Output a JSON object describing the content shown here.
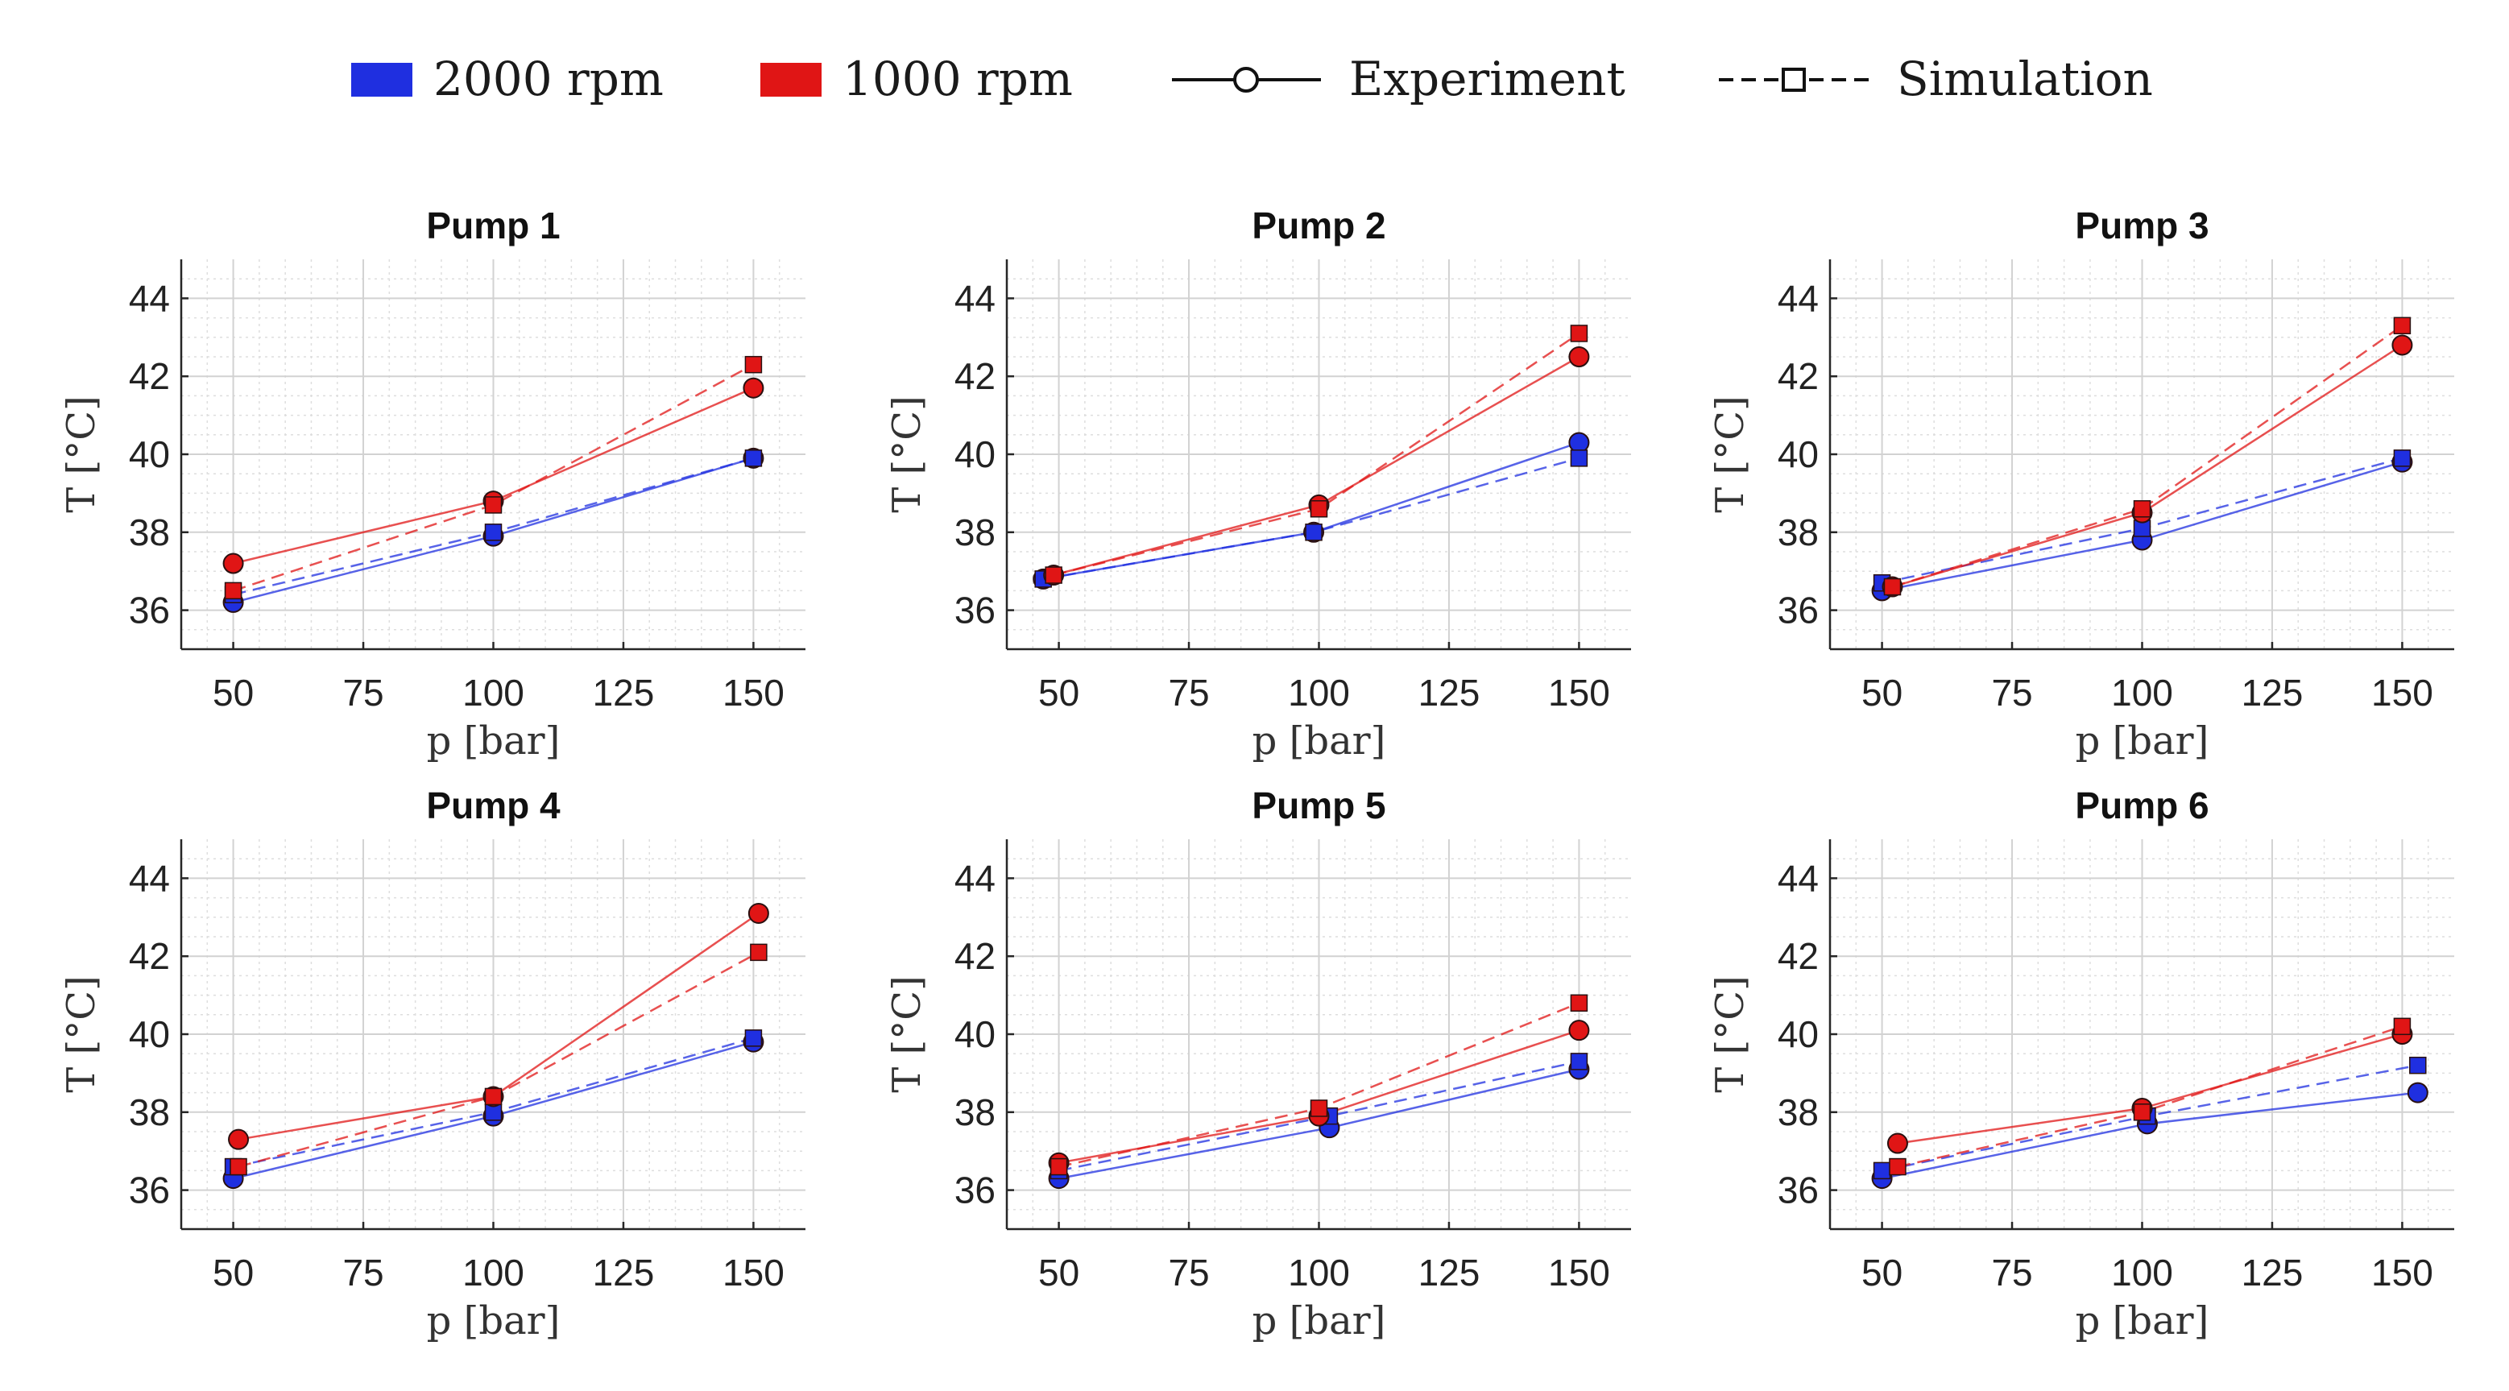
{
  "legend": {
    "blue_label": "2000 rpm",
    "red_label": "1000 rpm",
    "experiment_label": "Experiment",
    "simulation_label": "Simulation"
  },
  "colors": {
    "blue": "#1f2fe0",
    "red": "#e01515"
  },
  "chart_data": [
    {
      "type": "line",
      "title": "Pump 1",
      "xlabel": "p [bar]",
      "ylabel": "T [°C]",
      "xlim": [
        40,
        160
      ],
      "ylim": [
        35,
        45
      ],
      "xticks": [
        50,
        75,
        100,
        125,
        150
      ],
      "yticks": [
        36,
        38,
        40,
        42,
        44
      ],
      "series": [
        {
          "name": "2000 rpm Experiment",
          "color": "blue",
          "marker": "circle",
          "dashed": false,
          "x": [
            50,
            100,
            150
          ],
          "y": [
            36.2,
            37.9,
            39.9
          ]
        },
        {
          "name": "2000 rpm Simulation",
          "color": "blue",
          "marker": "square",
          "dashed": true,
          "x": [
            50,
            100,
            150
          ],
          "y": [
            36.4,
            38.0,
            39.9
          ]
        },
        {
          "name": "1000 rpm Experiment",
          "color": "red",
          "marker": "circle",
          "dashed": false,
          "x": [
            50,
            100,
            150
          ],
          "y": [
            37.2,
            38.8,
            41.7
          ]
        },
        {
          "name": "1000 rpm Simulation",
          "color": "red",
          "marker": "square",
          "dashed": true,
          "x": [
            50,
            100,
            150
          ],
          "y": [
            36.5,
            38.7,
            42.3
          ]
        }
      ]
    },
    {
      "type": "line",
      "title": "Pump 2",
      "xlabel": "p [bar]",
      "ylabel": "T [°C]",
      "xlim": [
        40,
        160
      ],
      "ylim": [
        35,
        45
      ],
      "xticks": [
        50,
        75,
        100,
        125,
        150
      ],
      "yticks": [
        36,
        38,
        40,
        42,
        44
      ],
      "series": [
        {
          "name": "2000 rpm Experiment",
          "color": "blue",
          "marker": "circle",
          "dashed": false,
          "x": [
            47,
            99,
            150
          ],
          "y": [
            36.8,
            38.0,
            40.3
          ]
        },
        {
          "name": "2000 rpm Simulation",
          "color": "blue",
          "marker": "square",
          "dashed": true,
          "x": [
            47,
            99,
            150
          ],
          "y": [
            36.8,
            38.0,
            39.9
          ]
        },
        {
          "name": "1000 rpm Experiment",
          "color": "red",
          "marker": "circle",
          "dashed": false,
          "x": [
            49,
            100,
            150
          ],
          "y": [
            36.9,
            38.7,
            42.5
          ]
        },
        {
          "name": "1000 rpm Simulation",
          "color": "red",
          "marker": "square",
          "dashed": true,
          "x": [
            49,
            100,
            150
          ],
          "y": [
            36.9,
            38.6,
            43.1
          ]
        }
      ]
    },
    {
      "type": "line",
      "title": "Pump 3",
      "xlabel": "p [bar]",
      "ylabel": "T [°C]",
      "xlim": [
        40,
        160
      ],
      "ylim": [
        35,
        45
      ],
      "xticks": [
        50,
        75,
        100,
        125,
        150
      ],
      "yticks": [
        36,
        38,
        40,
        42,
        44
      ],
      "series": [
        {
          "name": "2000 rpm Experiment",
          "color": "blue",
          "marker": "circle",
          "dashed": false,
          "x": [
            50,
            100,
            150
          ],
          "y": [
            36.5,
            37.8,
            39.8
          ]
        },
        {
          "name": "2000 rpm Simulation",
          "color": "blue",
          "marker": "square",
          "dashed": true,
          "x": [
            50,
            100,
            150
          ],
          "y": [
            36.7,
            38.1,
            39.9
          ]
        },
        {
          "name": "1000 rpm Experiment",
          "color": "red",
          "marker": "circle",
          "dashed": false,
          "x": [
            52,
            100,
            150
          ],
          "y": [
            36.6,
            38.5,
            42.8
          ]
        },
        {
          "name": "1000 rpm Simulation",
          "color": "red",
          "marker": "square",
          "dashed": true,
          "x": [
            52,
            100,
            150
          ],
          "y": [
            36.6,
            38.6,
            43.3
          ]
        }
      ]
    },
    {
      "type": "line",
      "title": "Pump 4",
      "xlabel": "p [bar]",
      "ylabel": "T [°C]",
      "xlim": [
        40,
        160
      ],
      "ylim": [
        35,
        45
      ],
      "xticks": [
        50,
        75,
        100,
        125,
        150
      ],
      "yticks": [
        36,
        38,
        40,
        42,
        44
      ],
      "series": [
        {
          "name": "2000 rpm Experiment",
          "color": "blue",
          "marker": "circle",
          "dashed": false,
          "x": [
            50,
            100,
            150
          ],
          "y": [
            36.3,
            37.9,
            39.8
          ]
        },
        {
          "name": "2000 rpm Simulation",
          "color": "blue",
          "marker": "square",
          "dashed": true,
          "x": [
            50,
            100,
            150
          ],
          "y": [
            36.6,
            38.0,
            39.9
          ]
        },
        {
          "name": "1000 rpm Experiment",
          "color": "red",
          "marker": "circle",
          "dashed": false,
          "x": [
            51,
            100,
            151
          ],
          "y": [
            37.3,
            38.4,
            43.1
          ]
        },
        {
          "name": "1000 rpm Simulation",
          "color": "red",
          "marker": "square",
          "dashed": true,
          "x": [
            51,
            100,
            151
          ],
          "y": [
            36.6,
            38.4,
            42.1
          ]
        }
      ]
    },
    {
      "type": "line",
      "title": "Pump 5",
      "xlabel": "p [bar]",
      "ylabel": "T [°C]",
      "xlim": [
        40,
        160
      ],
      "ylim": [
        35,
        45
      ],
      "xticks": [
        50,
        75,
        100,
        125,
        150
      ],
      "yticks": [
        36,
        38,
        40,
        42,
        44
      ],
      "series": [
        {
          "name": "2000 rpm Experiment",
          "color": "blue",
          "marker": "circle",
          "dashed": false,
          "x": [
            50,
            102,
            150
          ],
          "y": [
            36.3,
            37.6,
            39.1
          ]
        },
        {
          "name": "2000 rpm Simulation",
          "color": "blue",
          "marker": "square",
          "dashed": true,
          "x": [
            50,
            102,
            150
          ],
          "y": [
            36.5,
            37.9,
            39.3
          ]
        },
        {
          "name": "1000 rpm Experiment",
          "color": "red",
          "marker": "circle",
          "dashed": false,
          "x": [
            50,
            100,
            150
          ],
          "y": [
            36.7,
            37.9,
            40.1
          ]
        },
        {
          "name": "1000 rpm Simulation",
          "color": "red",
          "marker": "square",
          "dashed": true,
          "x": [
            50,
            100,
            150
          ],
          "y": [
            36.6,
            38.1,
            40.8
          ]
        }
      ]
    },
    {
      "type": "line",
      "title": "Pump 6",
      "xlabel": "p [bar]",
      "ylabel": "T [°C]",
      "xlim": [
        40,
        160
      ],
      "ylim": [
        35,
        45
      ],
      "xticks": [
        50,
        75,
        100,
        125,
        150
      ],
      "yticks": [
        36,
        38,
        40,
        42,
        44
      ],
      "series": [
        {
          "name": "2000 rpm Experiment",
          "color": "blue",
          "marker": "circle",
          "dashed": false,
          "x": [
            50,
            101,
            153
          ],
          "y": [
            36.3,
            37.7,
            38.5
          ]
        },
        {
          "name": "2000 rpm Simulation",
          "color": "blue",
          "marker": "square",
          "dashed": true,
          "x": [
            50,
            101,
            153
          ],
          "y": [
            36.5,
            37.9,
            39.2
          ]
        },
        {
          "name": "1000 rpm Experiment",
          "color": "red",
          "marker": "circle",
          "dashed": false,
          "x": [
            53,
            100,
            150
          ],
          "y": [
            37.2,
            38.1,
            40.0
          ]
        },
        {
          "name": "1000 rpm Simulation",
          "color": "red",
          "marker": "square",
          "dashed": true,
          "x": [
            53,
            100,
            150
          ],
          "y": [
            36.6,
            38.0,
            40.2
          ]
        }
      ]
    }
  ]
}
